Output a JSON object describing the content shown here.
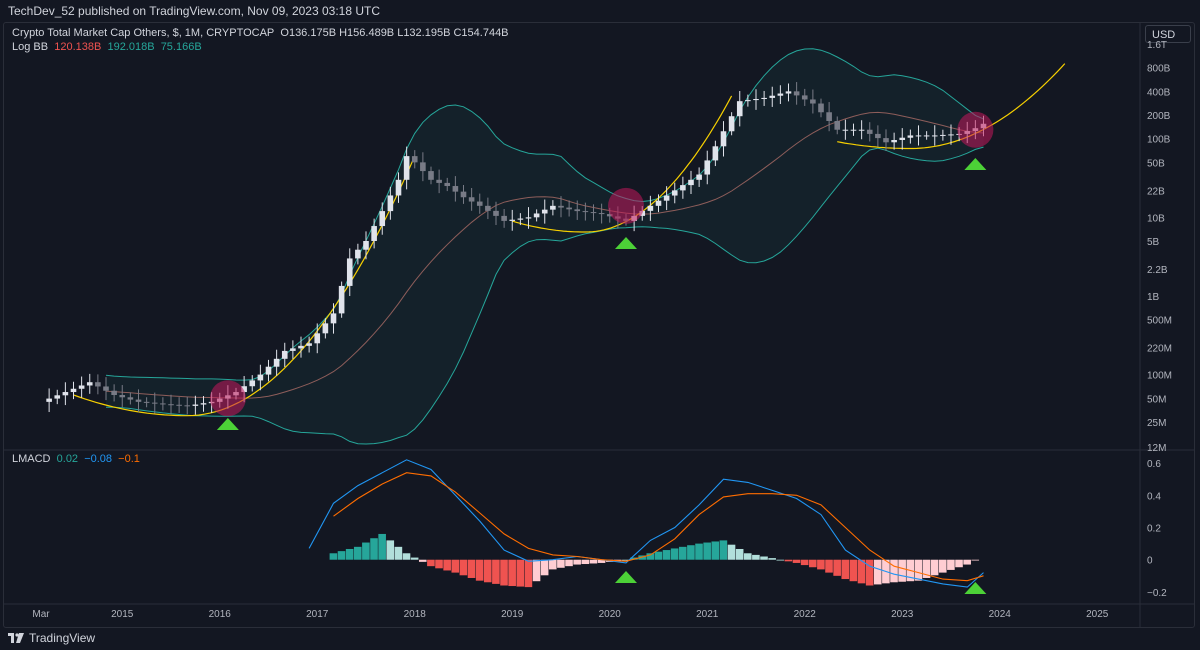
{
  "header": {
    "publisher_line": "TechDev_52 published on TradingView.com, Nov 09, 2023 03:18 UTC"
  },
  "legend_main": {
    "symbol": "Crypto Total Market Cap Others, $, 1M, CRYPTOCAP",
    "ohlc": "O136.175B  H156.489B  L132.195B  C154.744B",
    "bb_name": "Log BB",
    "bb_values": [
      "120.138B",
      "192.018B",
      "75.166B"
    ],
    "bb_colors": [
      "#ef5350",
      "#26a69a",
      "#26a69a"
    ]
  },
  "legend_osc": {
    "name": "LMACD",
    "values": [
      "0.02",
      "−0.08",
      "−0.1"
    ],
    "colors": [
      "#26a69a",
      "#2196f3",
      "#ff6d00"
    ]
  },
  "currency_button": "USD",
  "price_axis_labels": [
    "1.6T",
    "800B",
    "400B",
    "200B",
    "100B",
    "50B",
    "22B",
    "10B",
    "5B",
    "2.2B",
    "1B",
    "500M",
    "220M",
    "100M",
    "50M",
    "25M",
    "12M"
  ],
  "osc_axis_labels": [
    "0.6",
    "0.4",
    "0.2",
    "0",
    "−0.2"
  ],
  "time_axis_labels": [
    "Mar",
    "2015",
    "2016",
    "2017",
    "2018",
    "2019",
    "2020",
    "2021",
    "2022",
    "2023",
    "2024",
    "2025"
  ],
  "footer": {
    "brand": "TradingView"
  },
  "colors": {
    "bg": "#131722",
    "bull": "#e0e3eb",
    "bear": "#787b86",
    "bb_band": "#26a69a",
    "bb_basis": "#c2786f",
    "curve": "#f7d000",
    "circle": "#c2185b",
    "arrow": "#4cd137",
    "macd": "#2196f3",
    "signal": "#ff6d00",
    "hist_pos_strong": "#26a69a",
    "hist_pos_weak": "#b2dfdb",
    "hist_neg_strong": "#ef5350",
    "hist_neg_weak": "#ffcdd2"
  },
  "chart_data": [
    {
      "type": "candlestick",
      "title": "Crypto Total Market Cap Others, $, 1M, CRYPTOCAP",
      "scale": "log",
      "ylim": [
        12000000,
        1600000000000
      ],
      "y_unit": "USD",
      "x_range": [
        "2014-03",
        "2025-01"
      ],
      "annotation_markers": [
        "2016-02",
        "2020-03",
        "2023-10"
      ],
      "note_curves": "three yellow parabolic curves (2014-2018, 2019-2021, 2022-2024)",
      "series": [
        {
          "name": "Total Market Cap Others (monthly close, approx.)",
          "x": [
            "2014-03",
            "2014-06",
            "2014-09",
            "2014-12",
            "2015-03",
            "2015-06",
            "2015-09",
            "2015-12",
            "2016-03",
            "2016-06",
            "2016-09",
            "2016-12",
            "2017-03",
            "2017-05",
            "2017-07",
            "2017-09",
            "2017-11",
            "2017-12",
            "2018-01",
            "2018-03",
            "2018-05",
            "2018-07",
            "2018-09",
            "2018-12",
            "2019-03",
            "2019-06",
            "2019-09",
            "2019-12",
            "2020-03",
            "2020-06",
            "2020-09",
            "2020-12",
            "2021-02",
            "2021-05",
            "2021-08",
            "2021-11",
            "2022-02",
            "2022-05",
            "2022-08",
            "2022-11",
            "2023-02",
            "2023-05",
            "2023-08",
            "2023-10",
            "2023-11"
          ],
          "values": [
            45000000,
            60000000,
            80000000,
            55000000,
            45000000,
            42000000,
            40000000,
            45000000,
            60000000,
            100000000,
            200000000,
            250000000,
            600000000,
            3000000000,
            5000000000,
            12000000000,
            30000000000,
            60000000000,
            50000000000,
            30000000000,
            25000000000,
            18000000000,
            14000000000,
            9000000000,
            10000000000,
            14000000000,
            12000000000,
            11000000000,
            9000000000,
            14000000000,
            22000000000,
            35000000000,
            80000000000,
            300000000000,
            330000000000,
            400000000000,
            280000000000,
            130000000000,
            130000000000,
            90000000000,
            110000000000,
            110000000000,
            115000000000,
            136000000000,
            154744000000
          ]
        }
      ],
      "indicators": {
        "bb_basis": 120138000000,
        "bb_upper": 192018000000,
        "bb_lower": 75166000000
      }
    },
    {
      "type": "line",
      "title": "LMACD",
      "ylim": [
        -0.25,
        0.65
      ],
      "x_range": [
        "2014-03",
        "2025-01"
      ],
      "series": [
        {
          "name": "MACD",
          "x": [
            "2016-12",
            "2017-03",
            "2017-06",
            "2017-09",
            "2017-12",
            "2018-03",
            "2018-06",
            "2018-09",
            "2018-12",
            "2019-03",
            "2019-06",
            "2019-09",
            "2019-12",
            "2020-03",
            "2020-06",
            "2020-09",
            "2020-12",
            "2021-03",
            "2021-06",
            "2021-09",
            "2021-12",
            "2022-03",
            "2022-06",
            "2022-09",
            "2022-12",
            "2023-03",
            "2023-06",
            "2023-09",
            "2023-11"
          ],
          "values": [
            0.07,
            0.35,
            0.46,
            0.54,
            0.62,
            0.56,
            0.4,
            0.24,
            0.06,
            -0.01,
            0.0,
            0.02,
            0.0,
            -0.02,
            0.12,
            0.2,
            0.34,
            0.5,
            0.48,
            0.43,
            0.38,
            0.28,
            0.06,
            -0.04,
            -0.09,
            -0.12,
            -0.15,
            -0.17,
            -0.08
          ]
        },
        {
          "name": "Signal",
          "x": [
            "2017-03",
            "2017-06",
            "2017-09",
            "2017-12",
            "2018-03",
            "2018-06",
            "2018-09",
            "2018-12",
            "2019-03",
            "2019-06",
            "2019-09",
            "2019-12",
            "2020-03",
            "2020-06",
            "2020-09",
            "2020-12",
            "2021-03",
            "2021-06",
            "2021-09",
            "2021-12",
            "2022-03",
            "2022-06",
            "2022-09",
            "2022-12",
            "2023-03",
            "2023-06",
            "2023-09",
            "2023-11"
          ],
          "values": [
            0.27,
            0.38,
            0.47,
            0.54,
            0.52,
            0.42,
            0.29,
            0.16,
            0.07,
            0.03,
            0.02,
            0.0,
            -0.01,
            0.03,
            0.13,
            0.28,
            0.39,
            0.41,
            0.41,
            0.4,
            0.34,
            0.2,
            0.06,
            -0.04,
            -0.08,
            -0.12,
            -0.13,
            -0.1
          ]
        },
        {
          "name": "Histogram",
          "type": "bar",
          "x": [
            "2017-03",
            "2017-06",
            "2017-09",
            "2017-12",
            "2018-03",
            "2018-06",
            "2018-09",
            "2018-12",
            "2019-03",
            "2019-06",
            "2019-09",
            "2019-12",
            "2020-03",
            "2020-06",
            "2020-09",
            "2020-12",
            "2021-03",
            "2021-06",
            "2021-09",
            "2021-12",
            "2022-03",
            "2022-06",
            "2022-09",
            "2022-12",
            "2023-03",
            "2023-06",
            "2023-09",
            "2023-11"
          ],
          "values": [
            0.04,
            0.08,
            0.16,
            0.04,
            -0.04,
            -0.08,
            -0.13,
            -0.16,
            -0.17,
            -0.06,
            -0.03,
            -0.02,
            0.0,
            0.04,
            0.07,
            0.1,
            0.12,
            0.04,
            0.01,
            -0.02,
            -0.06,
            -0.12,
            -0.16,
            -0.14,
            -0.13,
            -0.08,
            -0.03,
            0.02
          ]
        }
      ]
    }
  ]
}
